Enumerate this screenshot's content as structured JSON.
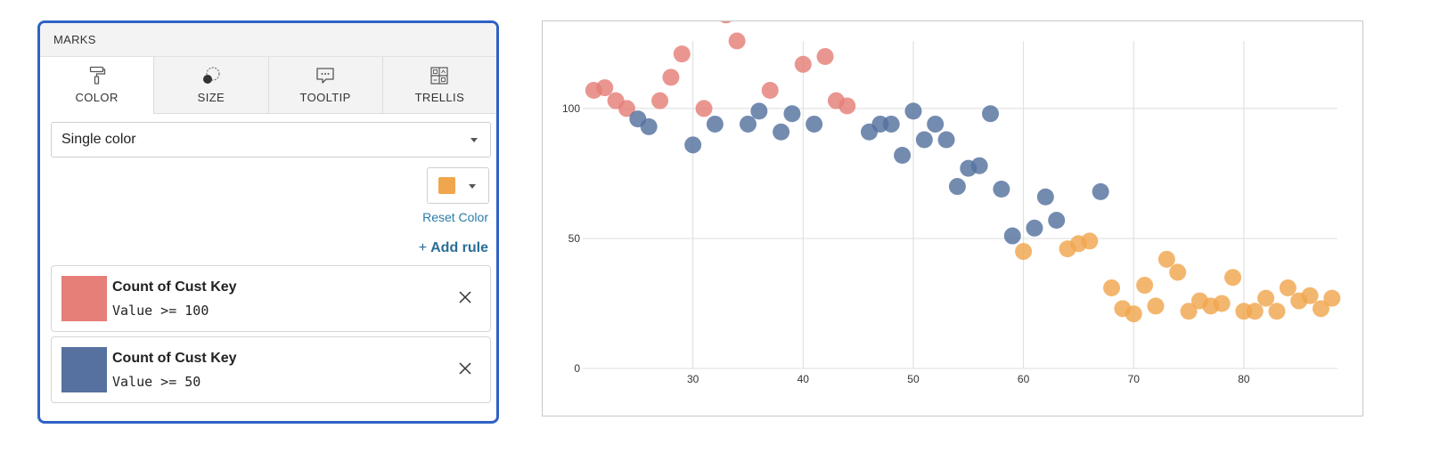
{
  "marks_panel": {
    "title": "MARKS",
    "tabs": [
      {
        "label": "COLOR",
        "icon": "paint-roller-icon",
        "active": true
      },
      {
        "label": "SIZE",
        "icon": "size-circles-icon",
        "active": false
      },
      {
        "label": "TOOLTIP",
        "icon": "tooltip-bubble-icon",
        "active": false
      },
      {
        "label": "TRELLIS",
        "icon": "trellis-grid-icon",
        "active": false
      }
    ],
    "color_mode": "Single color",
    "single_color": "#f0a64e",
    "reset_color_label": "Reset Color",
    "add_rule_label": "Add rule",
    "add_rule_plus": "+",
    "rules": [
      {
        "field": "Count of Cust Key",
        "condition": "Value >= 100",
        "color": "#e57f77"
      },
      {
        "field": "Count of Cust Key",
        "condition": "Value >= 50",
        "color": "#56719f"
      }
    ]
  },
  "chart_data": {
    "type": "scatter",
    "title": "",
    "xlabel": "",
    "ylabel": "",
    "xlim": [
      20,
      88.5
    ],
    "ylim": [
      0,
      126
    ],
    "x_ticks": [
      30,
      40,
      50,
      60,
      70,
      80
    ],
    "y_ticks": [
      0,
      50,
      100
    ],
    "grid": true,
    "colors": {
      "ge100": "#e57f77",
      "ge50": "#56719f",
      "default": "#f0a64e"
    },
    "points": [
      {
        "x": 21,
        "y": 107
      },
      {
        "x": 22,
        "y": 108
      },
      {
        "x": 23,
        "y": 103
      },
      {
        "x": 24,
        "y": 100
      },
      {
        "x": 25,
        "y": 96
      },
      {
        "x": 26,
        "y": 93
      },
      {
        "x": 27,
        "y": 103
      },
      {
        "x": 28,
        "y": 112
      },
      {
        "x": 29,
        "y": 121
      },
      {
        "x": 30,
        "y": 86
      },
      {
        "x": 31,
        "y": 100
      },
      {
        "x": 32,
        "y": 94
      },
      {
        "x": 33,
        "y": 136
      },
      {
        "x": 34,
        "y": 126
      },
      {
        "x": 35,
        "y": 94
      },
      {
        "x": 36,
        "y": 99
      },
      {
        "x": 37,
        "y": 107
      },
      {
        "x": 38,
        "y": 91
      },
      {
        "x": 39,
        "y": 98
      },
      {
        "x": 40,
        "y": 117
      },
      {
        "x": 41,
        "y": 94
      },
      {
        "x": 42,
        "y": 120
      },
      {
        "x": 43,
        "y": 103
      },
      {
        "x": 44,
        "y": 101
      },
      {
        "x": 46,
        "y": 91
      },
      {
        "x": 47,
        "y": 94
      },
      {
        "x": 48,
        "y": 94
      },
      {
        "x": 49,
        "y": 82
      },
      {
        "x": 50,
        "y": 99
      },
      {
        "x": 51,
        "y": 88
      },
      {
        "x": 52,
        "y": 94
      },
      {
        "x": 53,
        "y": 88
      },
      {
        "x": 54,
        "y": 70
      },
      {
        "x": 55,
        "y": 77
      },
      {
        "x": 56,
        "y": 78
      },
      {
        "x": 57,
        "y": 98
      },
      {
        "x": 58,
        "y": 69
      },
      {
        "x": 59,
        "y": 51
      },
      {
        "x": 60,
        "y": 45
      },
      {
        "x": 61,
        "y": 54
      },
      {
        "x": 62,
        "y": 66
      },
      {
        "x": 63,
        "y": 57
      },
      {
        "x": 64,
        "y": 46
      },
      {
        "x": 65,
        "y": 48
      },
      {
        "x": 66,
        "y": 49
      },
      {
        "x": 67,
        "y": 68
      },
      {
        "x": 68,
        "y": 31
      },
      {
        "x": 69,
        "y": 23
      },
      {
        "x": 70,
        "y": 21
      },
      {
        "x": 71,
        "y": 32
      },
      {
        "x": 72,
        "y": 24
      },
      {
        "x": 73,
        "y": 42
      },
      {
        "x": 74,
        "y": 37
      },
      {
        "x": 75,
        "y": 22
      },
      {
        "x": 76,
        "y": 26
      },
      {
        "x": 77,
        "y": 24
      },
      {
        "x": 78,
        "y": 25
      },
      {
        "x": 79,
        "y": 35
      },
      {
        "x": 80,
        "y": 22
      },
      {
        "x": 81,
        "y": 22
      },
      {
        "x": 82,
        "y": 27
      },
      {
        "x": 83,
        "y": 22
      },
      {
        "x": 84,
        "y": 31
      },
      {
        "x": 85,
        "y": 26
      },
      {
        "x": 86,
        "y": 28
      },
      {
        "x": 87,
        "y": 23
      },
      {
        "x": 88,
        "y": 27
      }
    ]
  }
}
